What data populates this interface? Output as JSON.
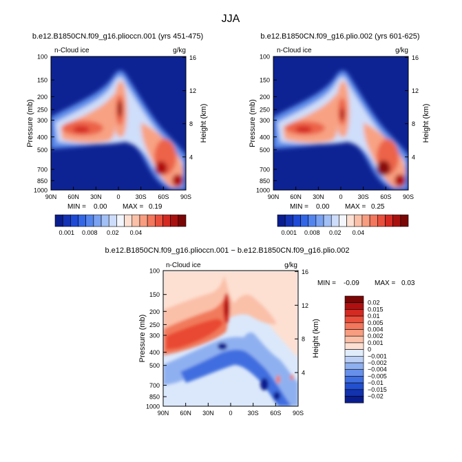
{
  "chart_data": {
    "type": "heatmap",
    "title": "JJA",
    "panels": [
      {
        "title": "b.e12.B1850CN.f09_g16.plioccn.001 (yrs 451-475)",
        "variable": "n-Cloud ice",
        "units": "g/kg",
        "ylabel_left": "Pressure (mb)",
        "ylabel_right": "Height (km)",
        "x_ticks": [
          "90N",
          "60N",
          "30N",
          "0",
          "30S",
          "60S",
          "90S"
        ],
        "pressure_ticks": [
          "100",
          "150",
          "200",
          "250",
          "300",
          "400",
          "500",
          "700",
          "850",
          "1000"
        ],
        "height_ticks": [
          "4",
          "8",
          "12",
          "16"
        ],
        "min_text": "MIN =",
        "min_value": "0.00",
        "max_text": "MAX =",
        "max_value": "0.19",
        "colorbar_labels": [
          "0.001",
          "0.008",
          "0.02",
          "0.04"
        ],
        "ylim": [
          1000,
          100
        ],
        "xlim": [
          90,
          -90
        ]
      },
      {
        "title": "b.e12.B1850CN.f09_g16.plio.002 (yrs 601-625)",
        "variable": "n-Cloud ice",
        "units": "g/kg",
        "ylabel_left": "Pressure (mb)",
        "ylabel_right": "Height (km)",
        "x_ticks": [
          "90N",
          "60N",
          "30N",
          "0",
          "30S",
          "60S",
          "90S"
        ],
        "pressure_ticks": [
          "100",
          "150",
          "200",
          "250",
          "300",
          "400",
          "500",
          "700",
          "850",
          "1000"
        ],
        "height_ticks": [
          "4",
          "8",
          "12",
          "16"
        ],
        "min_text": "MIN =",
        "min_value": "0.00",
        "max_text": "MAX =",
        "max_value": "0.25",
        "colorbar_labels": [
          "0.001",
          "0.008",
          "0.02",
          "0.04"
        ],
        "ylim": [
          1000,
          100
        ],
        "xlim": [
          90,
          -90
        ]
      },
      {
        "title": "b.e12.B1850CN.f09_g16.plioccn.001 − b.e12.B1850CN.f09_g16.plio.002",
        "variable": "n-Cloud ice",
        "units": "g/kg",
        "ylabel_left": "Pressure (mb)",
        "ylabel_right": "Height (km)",
        "x_ticks": [
          "90N",
          "60N",
          "30N",
          "0",
          "30S",
          "60S",
          "90S"
        ],
        "pressure_ticks": [
          "100",
          "150",
          "200",
          "250",
          "300",
          "400",
          "500",
          "700",
          "850",
          "1000"
        ],
        "height_ticks": [
          "4",
          "8",
          "12",
          "16"
        ],
        "min_text": "MIN =",
        "min_value": "-0.09",
        "max_text": "MAX =",
        "max_value": "0.03",
        "colorbar_labels": [
          "0.02",
          "0.015",
          "0.01",
          "0.005",
          "0.004",
          "0.002",
          "0.001",
          "0",
          "−0.001",
          "−0.002",
          "−0.004",
          "−0.005",
          "−0.01",
          "−0.015",
          "−0.02"
        ],
        "ylim": [
          1000,
          100
        ],
        "xlim": [
          90,
          -90
        ]
      }
    ],
    "colors": {
      "seq": [
        "#0a1d8f",
        "#1432b4",
        "#1e4ad6",
        "#3266e6",
        "#5384ee",
        "#7aa2f2",
        "#a2c0f6",
        "#cddcfa",
        "#f3f6fc",
        "#fde0d2",
        "#fbc0a8",
        "#f89d80",
        "#f2775c",
        "#e8503d",
        "#d42a22",
        "#a9110f",
        "#7a0606"
      ],
      "div": [
        "#7a0606",
        "#b01010",
        "#d42a22",
        "#e8503d",
        "#f2775c",
        "#f89d80",
        "#fbc0a8",
        "#fde0d2",
        "#e1ecfb",
        "#bcd0f6",
        "#8fb0f0",
        "#6690ea",
        "#3f6ee0",
        "#2250d0",
        "#1232ae",
        "#0a1d8f"
      ]
    }
  }
}
